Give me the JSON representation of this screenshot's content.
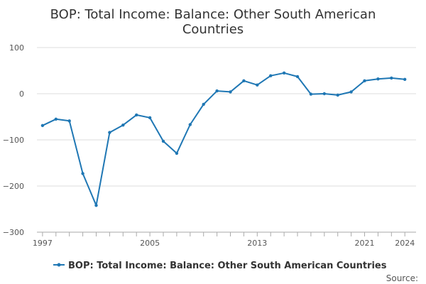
{
  "chart_data": {
    "type": "line",
    "title_lines": [
      "BOP: Total Income: Balance: Other South American",
      "Countries"
    ],
    "xlabel": "",
    "ylabel": "",
    "x": [
      1997,
      1998,
      1999,
      2000,
      2001,
      2002,
      2003,
      2004,
      2005,
      2006,
      2007,
      2008,
      2009,
      2010,
      2011,
      2012,
      2013,
      2014,
      2015,
      2016,
      2017,
      2018,
      2019,
      2020,
      2021,
      2022,
      2023,
      2024
    ],
    "series": [
      {
        "name": "BOP: Total Income: Balance: Other South American Countries",
        "color": "#1f77b4",
        "values": [
          -69,
          -55,
          -59,
          -173,
          -242,
          -84,
          -68,
          -46,
          -52,
          -103,
          -129,
          -67,
          -23,
          6,
          4,
          28,
          19,
          39,
          45,
          37,
          -1,
          0,
          -3,
          4,
          28,
          32,
          34,
          31
        ]
      }
    ],
    "xlim": [
      1996.9,
      2024.2
    ],
    "ylim": [
      -300,
      100
    ],
    "yticks": [
      100,
      0,
      -100,
      -200,
      -300
    ],
    "yticklabels": [
      "100",
      "0",
      "−100",
      "−200",
      "−300"
    ],
    "xticklabels": [
      1997,
      2005,
      2013,
      2021,
      2024
    ],
    "grid": "horizontal",
    "legend_position": "bottom-center",
    "source_label": "Source:"
  }
}
